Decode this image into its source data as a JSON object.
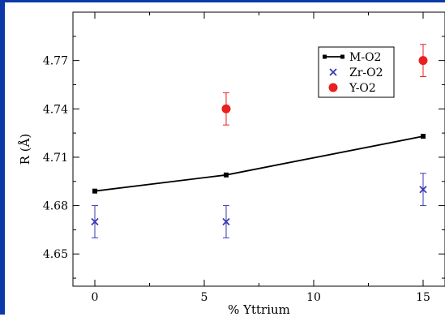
{
  "chart_data": {
    "type": "scatter",
    "title": "",
    "xlabel": "% Yttrium",
    "ylabel": "R (Å)",
    "xlim": [
      -1,
      16
    ],
    "ylim": [
      4.63,
      4.8
    ],
    "x_ticks": [
      0,
      5,
      10,
      15
    ],
    "y_ticks": [
      4.65,
      4.68,
      4.71,
      4.74,
      4.77
    ],
    "x_tick_labels": [
      "0",
      "5",
      "10",
      "15"
    ],
    "y_tick_labels": [
      "4.65",
      "4.68",
      "4.71",
      "4.74",
      "4.77"
    ],
    "grid": false,
    "legend_position": "top-right",
    "series": [
      {
        "name": "M-O2",
        "marker": "square",
        "line": true,
        "color": "#000000",
        "points": [
          {
            "x": 0,
            "y": 4.689
          },
          {
            "x": 6,
            "y": 4.699
          },
          {
            "x": 15,
            "y": 4.723
          }
        ]
      },
      {
        "name": "Zr-O2",
        "marker": "x",
        "line": false,
        "color": "#3a3ab0",
        "points": [
          {
            "x": 0,
            "y": 4.67,
            "err": 0.01
          },
          {
            "x": 6,
            "y": 4.67,
            "err": 0.01
          },
          {
            "x": 15,
            "y": 4.69,
            "err": 0.01
          }
        ]
      },
      {
        "name": "Y-O2",
        "marker": "circle",
        "line": false,
        "color": "#e82020",
        "points": [
          {
            "x": 6,
            "y": 4.74,
            "err": 0.01
          },
          {
            "x": 15,
            "y": 4.77,
            "err": 0.01
          }
        ]
      }
    ]
  }
}
